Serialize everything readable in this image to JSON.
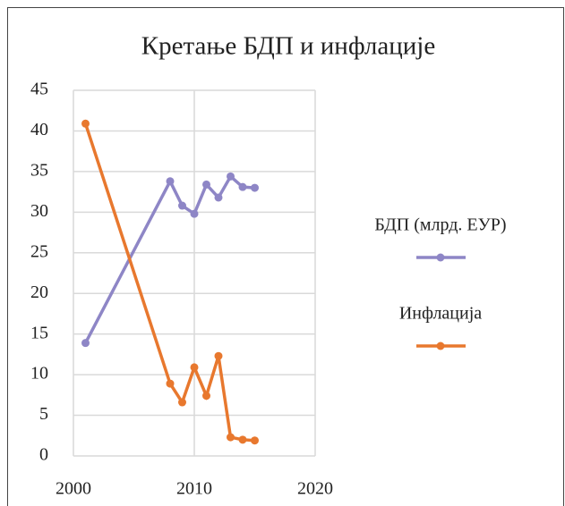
{
  "chart_data": {
    "type": "line",
    "title": "Кретање БДП и инфлације",
    "series": [
      {
        "name": "БДП (млрд. ЕУР)",
        "color": "#8e86c6",
        "x": [
          2001,
          2008,
          2009,
          2010,
          2011,
          2012,
          2013,
          2014,
          2015
        ],
        "values": [
          13.9,
          33.8,
          30.8,
          29.8,
          33.4,
          31.8,
          34.4,
          33.1,
          33.0
        ]
      },
      {
        "name": "Инфлација",
        "color": "#e8782e",
        "x": [
          2001,
          2008,
          2009,
          2010,
          2011,
          2012,
          2013,
          2014,
          2015
        ],
        "values": [
          40.9,
          8.9,
          6.6,
          10.9,
          7.4,
          12.3,
          2.3,
          2.0,
          1.9
        ]
      }
    ],
    "xlim": [
      2000,
      2020
    ],
    "xticks": [
      2000,
      2010,
      2020
    ],
    "ylim": [
      0,
      45
    ],
    "yticks": [
      0,
      5,
      10,
      15,
      20,
      25,
      30,
      35,
      40,
      45
    ],
    "grid": true,
    "legend": "right"
  }
}
